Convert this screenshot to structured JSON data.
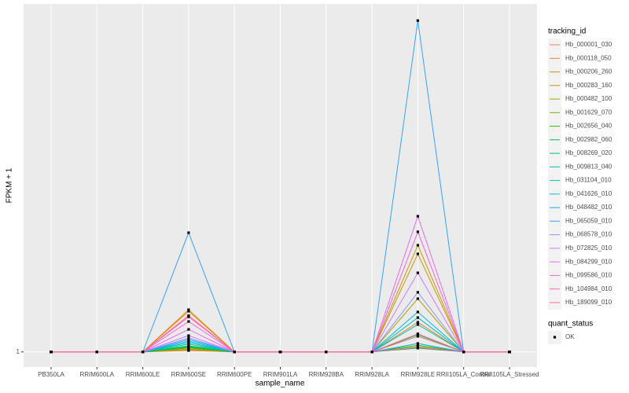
{
  "chart_data": {
    "type": "line",
    "x_label": "sample_name",
    "y_label": "FPKM + 1",
    "categories": [
      "PB350LA",
      "RRIM600LA",
      "RRIM600LE",
      "RRIM600SE",
      "RRIM600PE",
      "RRIM901LA",
      "RRIM928BA",
      "RRIM928LA",
      "RRIM928LE",
      "RRII105LA_Control",
      "RRII105LA_Stressed"
    ],
    "ylim": [
      0,
      24
    ],
    "yticks": [
      1
    ],
    "grid": true,
    "legend_title": "tracking_id",
    "legend_position": "right",
    "point_legend": {
      "title": "quant_status",
      "labels": [
        "OK"
      ],
      "color": "#000000"
    },
    "series": [
      {
        "name": "Hb_000001_030",
        "color": "#F8766D",
        "values": [
          1,
          1,
          1,
          1.09,
          1,
          1,
          1,
          1,
          2.03,
          1,
          1
        ]
      },
      {
        "name": "Hb_000118_050",
        "color": "#EA8331",
        "values": [
          1,
          1,
          1,
          3.79,
          1,
          1,
          1,
          1,
          2.96,
          1,
          1
        ]
      },
      {
        "name": "Hb_000206_260",
        "color": "#D89000",
        "values": [
          1,
          1,
          1,
          3.69,
          1,
          1,
          1,
          1,
          7.48,
          1,
          1
        ]
      },
      {
        "name": "Hb_000283_160",
        "color": "#C09B00",
        "values": [
          1,
          1,
          1,
          1.14,
          1,
          1,
          1,
          1,
          8.05,
          1,
          1
        ]
      },
      {
        "name": "Hb_000482_100",
        "color": "#A3A500",
        "values": [
          1,
          1,
          1,
          1.19,
          1,
          1,
          1,
          1,
          4.52,
          1,
          1
        ]
      },
      {
        "name": "Hb_001629_070",
        "color": "#7CAE00",
        "values": [
          1,
          1,
          1,
          1.25,
          1,
          1,
          1,
          1,
          1.35,
          1,
          1
        ]
      },
      {
        "name": "Hb_002656_040",
        "color": "#39B600",
        "values": [
          1,
          1,
          1,
          1.3,
          1,
          1,
          1,
          1,
          1.45,
          1,
          1
        ]
      },
      {
        "name": "Hb_002982_060",
        "color": "#00BB4E",
        "values": [
          1,
          1,
          1,
          1.35,
          1,
          1,
          1,
          1,
          1.25,
          1,
          1
        ]
      },
      {
        "name": "Hb_008269_020",
        "color": "#00BF7D",
        "values": [
          1,
          1,
          1,
          1.4,
          1,
          1,
          1,
          1,
          2.13,
          1,
          1
        ]
      },
      {
        "name": "Hb_009813_040",
        "color": "#00C1A3",
        "values": [
          1,
          1,
          1,
          1.51,
          1,
          1,
          1,
          1,
          2.81,
          1,
          1
        ]
      },
      {
        "name": "Hb_031104_010",
        "color": "#00BFC4",
        "values": [
          1,
          1,
          1,
          1.61,
          1,
          1,
          1,
          1,
          3.27,
          1,
          1
        ]
      },
      {
        "name": "Hb_041626_010",
        "color": "#00BAE0",
        "values": [
          1,
          1,
          1,
          1.71,
          1,
          1,
          1,
          1,
          3.64,
          1,
          1
        ]
      },
      {
        "name": "Hb_048482_010",
        "color": "#00B0F6",
        "values": [
          1,
          1,
          1,
          1.82,
          1,
          1,
          1,
          1,
          1.56,
          1,
          1
        ]
      },
      {
        "name": "Hb_065059_010",
        "color": "#35A2FF",
        "values": [
          1,
          1,
          1,
          8.88,
          1,
          1,
          1,
          1,
          22.9,
          1,
          1
        ]
      },
      {
        "name": "Hb_068578_010",
        "color": "#9590FF",
        "values": [
          1,
          1,
          1,
          1.92,
          1,
          1,
          1,
          1,
          4.94,
          1,
          1
        ]
      },
      {
        "name": "Hb_072825_010",
        "color": "#C77CFF",
        "values": [
          1,
          1,
          1,
          2.08,
          1,
          1,
          1,
          1,
          6.23,
          1,
          1
        ]
      },
      {
        "name": "Hb_084299_010",
        "color": "#E76BF3",
        "values": [
          1,
          1,
          1,
          2.49,
          1,
          1,
          1,
          1,
          9.97,
          1,
          1
        ]
      },
      {
        "name": "Hb_099586_010",
        "color": "#FA62DB",
        "values": [
          1,
          1,
          1,
          3.01,
          1,
          1,
          1,
          1,
          8.94,
          1,
          1
        ]
      },
      {
        "name": "Hb_104984_010",
        "color": "#FF62BC",
        "values": [
          1,
          1,
          1,
          3.32,
          1,
          1,
          1,
          1,
          1.3,
          1,
          1
        ]
      },
      {
        "name": "Hb_189099_010",
        "color": "#FF6C91",
        "values": [
          1,
          1,
          1,
          3.4,
          1,
          1,
          1,
          1,
          2.2,
          1,
          1
        ]
      }
    ]
  }
}
